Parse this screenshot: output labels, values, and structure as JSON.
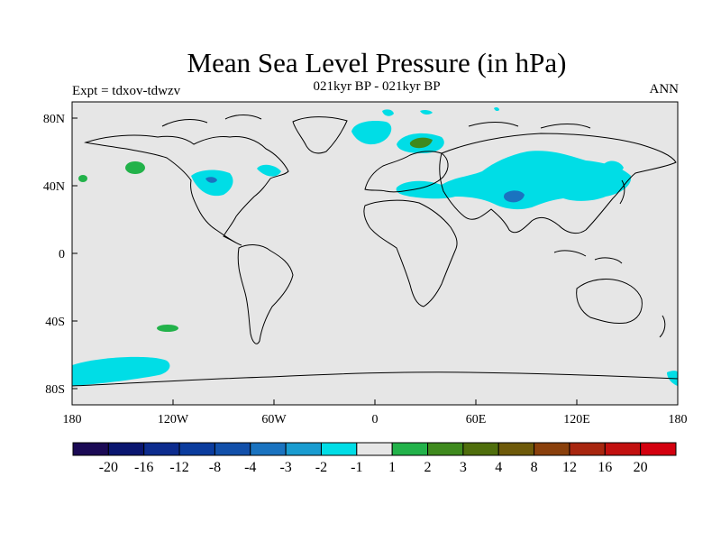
{
  "title": "Mean Sea Level Pressure (in hPa)",
  "subtitle": "021kyr BP - 021kyr BP",
  "left_label": "Expt = tdxov-tdwzv",
  "right_label": "ANN",
  "map": {
    "background_color": "#e6e6e6",
    "lat_ticks": [
      "80N",
      "40N",
      "0",
      "40S",
      "80S"
    ],
    "lon_ticks": [
      "180",
      "120W",
      "60W",
      "0",
      "60E",
      "120E",
      "180"
    ]
  },
  "colorbar": {
    "colors": [
      "#1b0a55",
      "#0a1670",
      "#0d2c8e",
      "#0b3c9e",
      "#1250aa",
      "#1a73c0",
      "#199cd0",
      "#00dde6",
      "#e6e6e6",
      "#22b24a",
      "#3f8a1e",
      "#4f6e0c",
      "#6e5a0a",
      "#8a400c",
      "#a8260f",
      "#c2100f",
      "#d4000f"
    ],
    "labels": [
      "-20",
      "-16",
      "-12",
      "-8",
      "-4",
      "-3",
      "-2",
      "-1",
      "1",
      "2",
      "3",
      "4",
      "8",
      "12",
      "16",
      "20"
    ]
  },
  "map_features": {
    "cyan": "#00dde6",
    "blue": "#1a73c0",
    "green": "#22b24a",
    "darkgreen": "#3f8a1e"
  }
}
